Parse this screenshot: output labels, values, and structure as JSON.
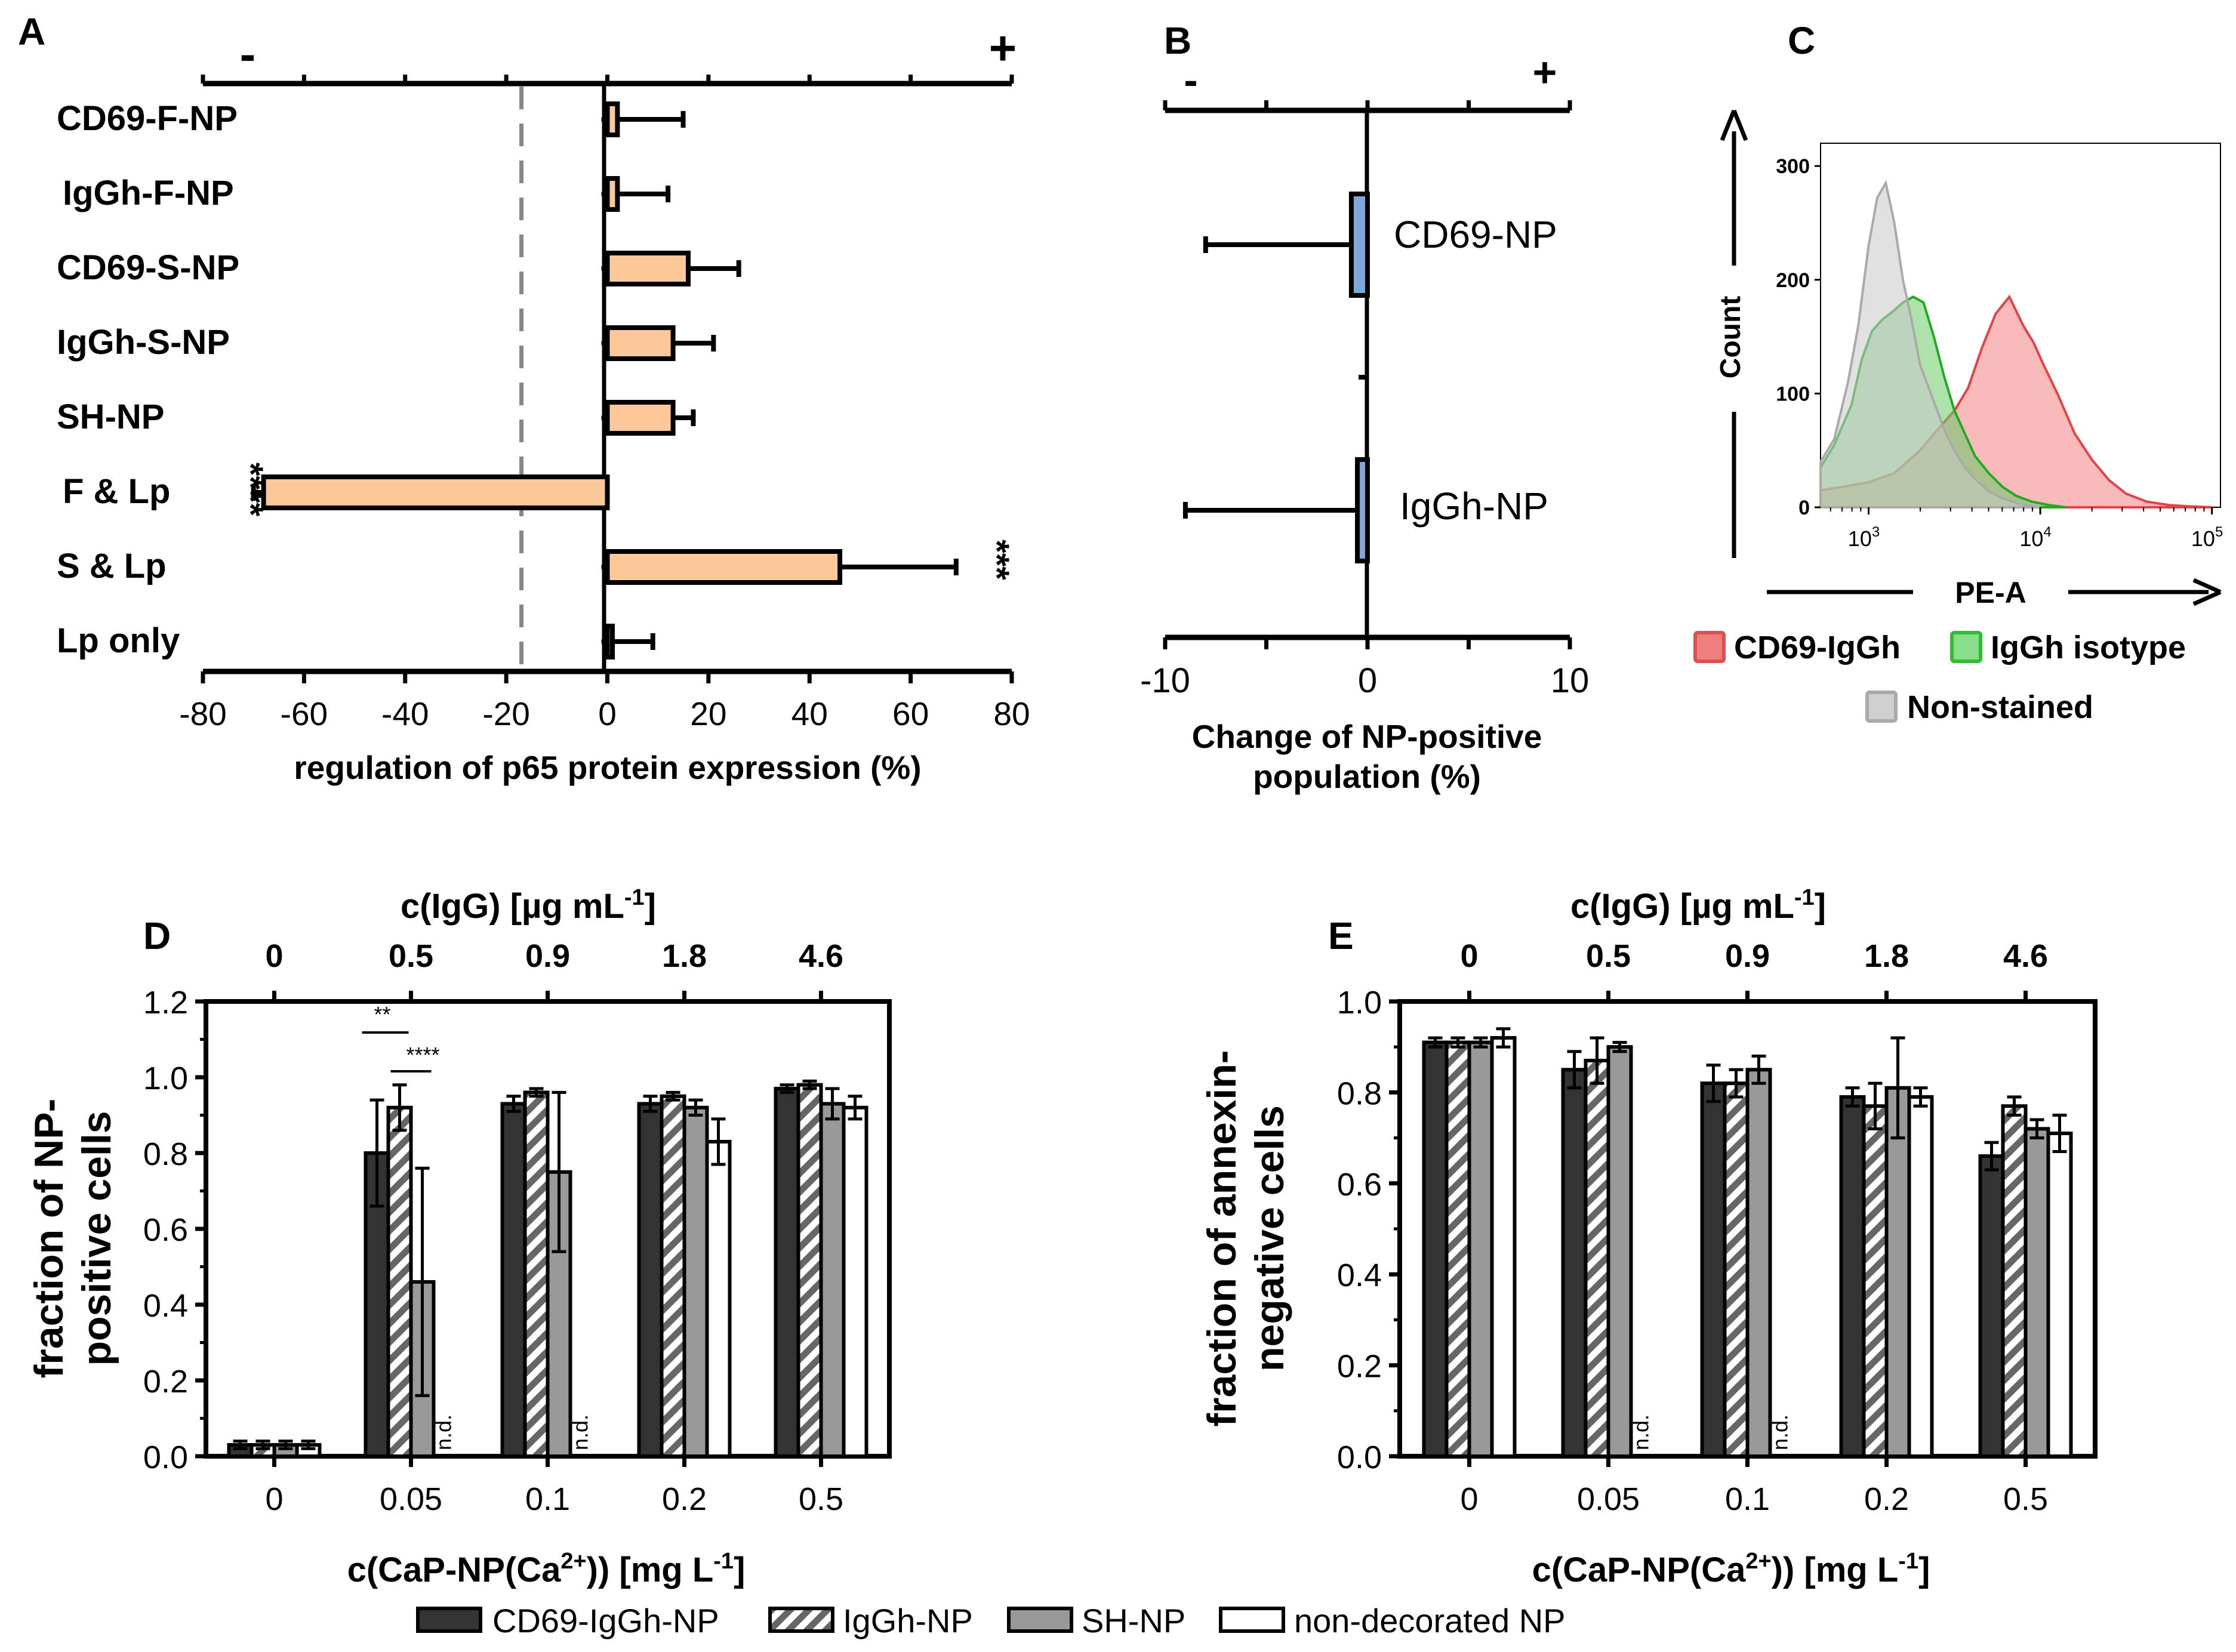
{
  "chart_data": [
    {
      "panel": "A",
      "type": "bar",
      "orientation": "horizontal",
      "categories": [
        "CD69-F-NP",
        "IgGh-F-NP",
        "CD69-S-NP",
        "IgGh-S-NP",
        "SH-NP",
        "F & Lp",
        "S & Lp",
        "Lp only"
      ],
      "values": [
        2,
        2,
        16,
        13,
        13,
        -68,
        46,
        1
      ],
      "errors": [
        13,
        10,
        10,
        8,
        4,
        2,
        23,
        8
      ],
      "significance": [
        "",
        "",
        "",
        "",
        "",
        "****",
        "***",
        ""
      ],
      "xlabel": "regulation of p65 protein expression (%)",
      "xlim": [
        -80,
        80
      ],
      "xticks": [
        "-80",
        "-60",
        "-40",
        "-20",
        "0",
        "20",
        "40",
        "60",
        "80"
      ],
      "top_minus": "-",
      "top_plus": "+",
      "reference_line_x": -17
    },
    {
      "panel": "B",
      "type": "bar",
      "orientation": "horizontal",
      "categories": [
        "CD69-NP",
        "IgGh-NP"
      ],
      "values": [
        -0.8,
        -0.5
      ],
      "errors": [
        7.2,
        8.5
      ],
      "xlabel_line1": "Change of NP-positive",
      "xlabel_line2": "population (%)",
      "xlim": [
        -10,
        10
      ],
      "xticks": [
        "-10",
        "0",
        "10"
      ],
      "top_minus": "-",
      "top_plus": "+"
    },
    {
      "panel": "C",
      "type": "area",
      "subtype": "flow-cytometry-histogram",
      "xlabel": "PE-A",
      "ylabel": "Count",
      "xscale": "log",
      "xticks": [
        "10",
        "10",
        "10"
      ],
      "xtick_exponents": [
        "3",
        "4",
        "5"
      ],
      "yticks": [
        "0",
        "100",
        "200",
        "300"
      ],
      "series": [
        {
          "name": "Non-stained",
          "color": "#c8c8c8",
          "x": [
            2.72,
            2.8,
            2.88,
            2.94,
            3.0,
            3.05,
            3.1,
            3.15,
            3.2,
            3.25,
            3.3,
            3.35,
            3.4,
            3.45,
            3.5,
            3.56,
            3.62,
            3.7,
            3.78,
            3.88,
            4.0
          ],
          "y": [
            40,
            60,
            110,
            160,
            230,
            272,
            285,
            250,
            200,
            165,
            125,
            105,
            85,
            65,
            50,
            35,
            25,
            14,
            8,
            3,
            0
          ]
        },
        {
          "name": "IgGh isotype",
          "color": "#66cc66",
          "x": [
            2.72,
            2.8,
            2.9,
            2.96,
            3.02,
            3.08,
            3.14,
            3.2,
            3.26,
            3.32,
            3.38,
            3.44,
            3.5,
            3.56,
            3.62,
            3.7,
            3.78,
            3.86,
            3.95,
            4.05,
            4.15
          ],
          "y": [
            35,
            55,
            90,
            130,
            155,
            165,
            172,
            180,
            185,
            180,
            150,
            115,
            85,
            65,
            45,
            30,
            18,
            10,
            5,
            2,
            0
          ]
        },
        {
          "name": "CD69-IgGh",
          "color": "#f08080",
          "x": [
            2.72,
            2.85,
            3.0,
            3.15,
            3.3,
            3.4,
            3.5,
            3.58,
            3.66,
            3.74,
            3.82,
            3.9,
            3.96,
            4.02,
            4.1,
            4.2,
            4.3,
            4.4,
            4.5,
            4.62,
            4.75,
            4.85,
            5.0
          ],
          "y": [
            15,
            18,
            22,
            30,
            50,
            68,
            85,
            105,
            140,
            170,
            185,
            160,
            145,
            125,
            100,
            65,
            42,
            24,
            12,
            5,
            2,
            1,
            0
          ]
        }
      ]
    },
    {
      "panel": "D",
      "type": "bar",
      "categories": [
        "0",
        "0.05",
        "0.1",
        "0.2",
        "0.5"
      ],
      "top_categories": [
        "0",
        "0.5",
        "0.9",
        "1.8",
        "4.6"
      ],
      "top_title": "c(IgG) [µg mL",
      "top_title_sup": "-1",
      "top_title_end": "]",
      "xlabel_main": "c(CaP-NP(Ca",
      "xlabel_sup1": "2+",
      "xlabel_mid": ")) [mg L",
      "xlabel_sup2": "-1",
      "xlabel_end": "]",
      "ylabel_line1": "fraction of NP-",
      "ylabel_line2": "positive cells",
      "ylim": [
        0,
        1.2
      ],
      "yticks": [
        "0.0",
        "0.2",
        "0.4",
        "0.6",
        "0.8",
        "1.0",
        "1.2"
      ],
      "series": [
        {
          "name": "CD69-IgGh-NP",
          "values": [
            0.03,
            0.8,
            0.93,
            0.93,
            0.97
          ],
          "errors": [
            0.01,
            0.14,
            0.02,
            0.02,
            0.01
          ]
        },
        {
          "name": "IgGh-NP",
          "values": [
            0.03,
            0.92,
            0.96,
            0.95,
            0.98
          ],
          "errors": [
            0.01,
            0.06,
            0.01,
            0.01,
            0.01
          ]
        },
        {
          "name": "SH-NP",
          "values": [
            0.03,
            0.46,
            0.75,
            0.92,
            0.93
          ],
          "errors": [
            0.01,
            0.3,
            0.21,
            0.02,
            0.04
          ]
        },
        {
          "name": "non-decorated NP",
          "values": [
            0.03,
            null,
            null,
            0.83,
            0.92
          ],
          "errors": [
            0.01,
            null,
            null,
            0.06,
            0.03
          ]
        }
      ],
      "nd_label": "n.d.",
      "significance": [
        {
          "label": "**"
        },
        {
          "label": "****"
        }
      ]
    },
    {
      "panel": "E",
      "type": "bar",
      "categories": [
        "0",
        "0.05",
        "0.1",
        "0.2",
        "0.5"
      ],
      "top_categories": [
        "0",
        "0.5",
        "0.9",
        "1.8",
        "4.6"
      ],
      "top_title": "c(IgG) [µg mL",
      "top_title_sup": "-1",
      "top_title_end": "]",
      "xlabel_main": "c(CaP-NP(Ca",
      "xlabel_sup1": "2+",
      "xlabel_mid": ")) [mg L",
      "xlabel_sup2": "-1",
      "xlabel_end": "]",
      "ylabel_line1": "fraction of annexin-",
      "ylabel_line2": "negative cells",
      "ylim": [
        0,
        1.0
      ],
      "yticks": [
        "0.0",
        "0.2",
        "0.4",
        "0.6",
        "0.8",
        "1.0"
      ],
      "series": [
        {
          "name": "CD69-IgGh-NP",
          "values": [
            0.91,
            0.85,
            0.82,
            0.79,
            0.66
          ],
          "errors": [
            0.01,
            0.04,
            0.04,
            0.02,
            0.03
          ]
        },
        {
          "name": "IgGh-NP",
          "values": [
            0.91,
            0.87,
            0.82,
            0.77,
            0.77
          ],
          "errors": [
            0.01,
            0.05,
            0.03,
            0.05,
            0.02
          ]
        },
        {
          "name": "SH-NP",
          "values": [
            0.91,
            0.9,
            0.85,
            0.81,
            0.72
          ],
          "errors": [
            0.01,
            0.01,
            0.03,
            0.11,
            0.02
          ]
        },
        {
          "name": "non-decorated NP",
          "values": [
            0.92,
            null,
            null,
            0.79,
            0.71
          ],
          "errors": [
            0.02,
            null,
            null,
            0.02,
            0.04
          ]
        }
      ],
      "nd_label": "n.d."
    }
  ],
  "panel_labels": {
    "a": "A",
    "b": "B",
    "c": "C",
    "d": "D",
    "e": "E"
  },
  "legend_c": {
    "cd69": "CD69-IgGh",
    "isotype": "IgGh isotype",
    "nonstained": "Non-stained"
  },
  "legend_de": {
    "s1": "CD69-IgGh-NP",
    "s2": "IgGh-NP",
    "s3": "SH-NP",
    "s4": "non-decorated NP"
  },
  "colors": {
    "bar_orange": "#fcc899",
    "bar_blue": "#7fa7dc",
    "dark_bar": "#333333",
    "gray_bar": "#999999",
    "hatched_gray": "#666666",
    "ref_line": "#888888"
  }
}
